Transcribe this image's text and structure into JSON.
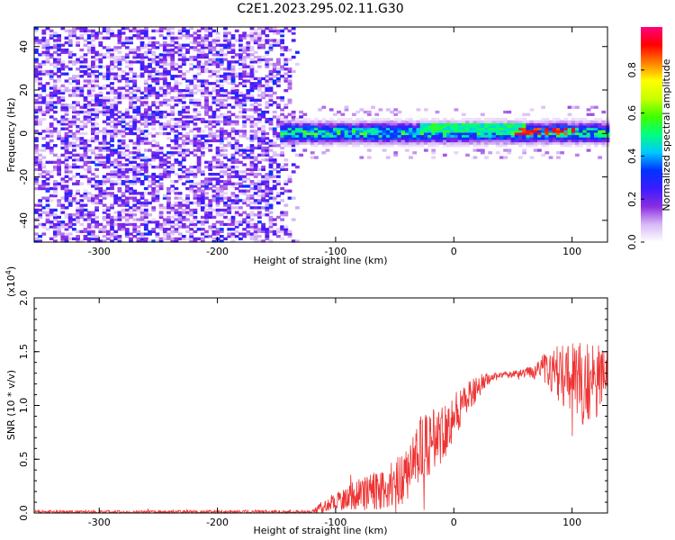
{
  "title": "C2E1.2023.295.02.11.G30",
  "chart_data": [
    {
      "type": "heatmap",
      "xlabel": "Height of straight line (km)",
      "ylabel": "Frequency (Hz)",
      "xlim": [
        -355,
        130
      ],
      "ylim": [
        -50,
        49
      ],
      "xticks": [
        -300,
        -200,
        -100,
        0,
        100
      ],
      "yticks": [
        -40,
        -20,
        0,
        20,
        40
      ],
      "grid": false,
      "colorbar": {
        "label": "Normalized spectral amplitude",
        "range": [
          0,
          1
        ],
        "ticks": [
          "0.0",
          "0.2",
          "0.4",
          "0.6",
          "0.8"
        ],
        "colors": [
          "#ffffff",
          "#d7b8f5",
          "#8a2be2",
          "#3a1cff",
          "#0033ff",
          "#00c8ff",
          "#00ff80",
          "#40ff00",
          "#c8ff00",
          "#ffff00",
          "#ff8000",
          "#ff0000",
          "#ff0080"
        ]
      },
      "regions": [
        {
          "name": "noise",
          "x_range": [
            -355,
            -130
          ],
          "y_range": [
            -50,
            49
          ],
          "amplitude": 0.15
        },
        {
          "name": "signal band",
          "x_range": [
            -150,
            130
          ],
          "center_hz": 0,
          "half_width_hz": 5,
          "amplitude": 0.55
        },
        {
          "name": "core",
          "x_range": [
            -30,
            60
          ],
          "center_hz": 2,
          "half_width_hz": 2,
          "amplitude": 0.5
        },
        {
          "name": "peaks",
          "x_range": [
            50,
            100
          ],
          "center_hz": 1,
          "half_width_hz": 1.5,
          "amplitude": 0.85
        }
      ]
    },
    {
      "type": "line",
      "xlabel": "Height of straight line (km)",
      "ylabel": "SNR (10 * v/v)",
      "multiplier": "(x10",
      "multiplier_exp": "4",
      "multiplier_close": ")",
      "xlim": [
        -355,
        130
      ],
      "ylim": [
        0,
        2.0
      ],
      "xticks": [
        -300,
        -200,
        -100,
        0,
        100
      ],
      "yticks": [
        "0.0",
        "0.5",
        "1.0",
        "1.5",
        "2.0"
      ],
      "color": "#ee3333",
      "grid": false,
      "envelope": [
        {
          "x": -355,
          "mean": 0.01,
          "spread": 0.02
        },
        {
          "x": -120,
          "mean": 0.01,
          "spread": 0.02
        },
        {
          "x": -110,
          "mean": 0.06,
          "spread": 0.08
        },
        {
          "x": -90,
          "mean": 0.15,
          "spread": 0.15
        },
        {
          "x": -60,
          "mean": 0.22,
          "spread": 0.25
        },
        {
          "x": -45,
          "mean": 0.3,
          "spread": 0.3
        },
        {
          "x": -30,
          "mean": 0.55,
          "spread": 0.4
        },
        {
          "x": -10,
          "mean": 0.75,
          "spread": 0.35
        },
        {
          "x": 0,
          "mean": 0.9,
          "spread": 0.3
        },
        {
          "x": 10,
          "mean": 1.05,
          "spread": 0.2
        },
        {
          "x": 25,
          "mean": 1.22,
          "spread": 0.1
        },
        {
          "x": 35,
          "mean": 1.28,
          "spread": 0.03
        },
        {
          "x": 60,
          "mean": 1.3,
          "spread": 0.05
        },
        {
          "x": 75,
          "mean": 1.35,
          "spread": 0.15
        },
        {
          "x": 90,
          "mean": 1.3,
          "spread": 0.35
        },
        {
          "x": 110,
          "mean": 1.2,
          "spread": 0.5
        },
        {
          "x": 130,
          "mean": 1.25,
          "spread": 0.45
        }
      ]
    }
  ]
}
